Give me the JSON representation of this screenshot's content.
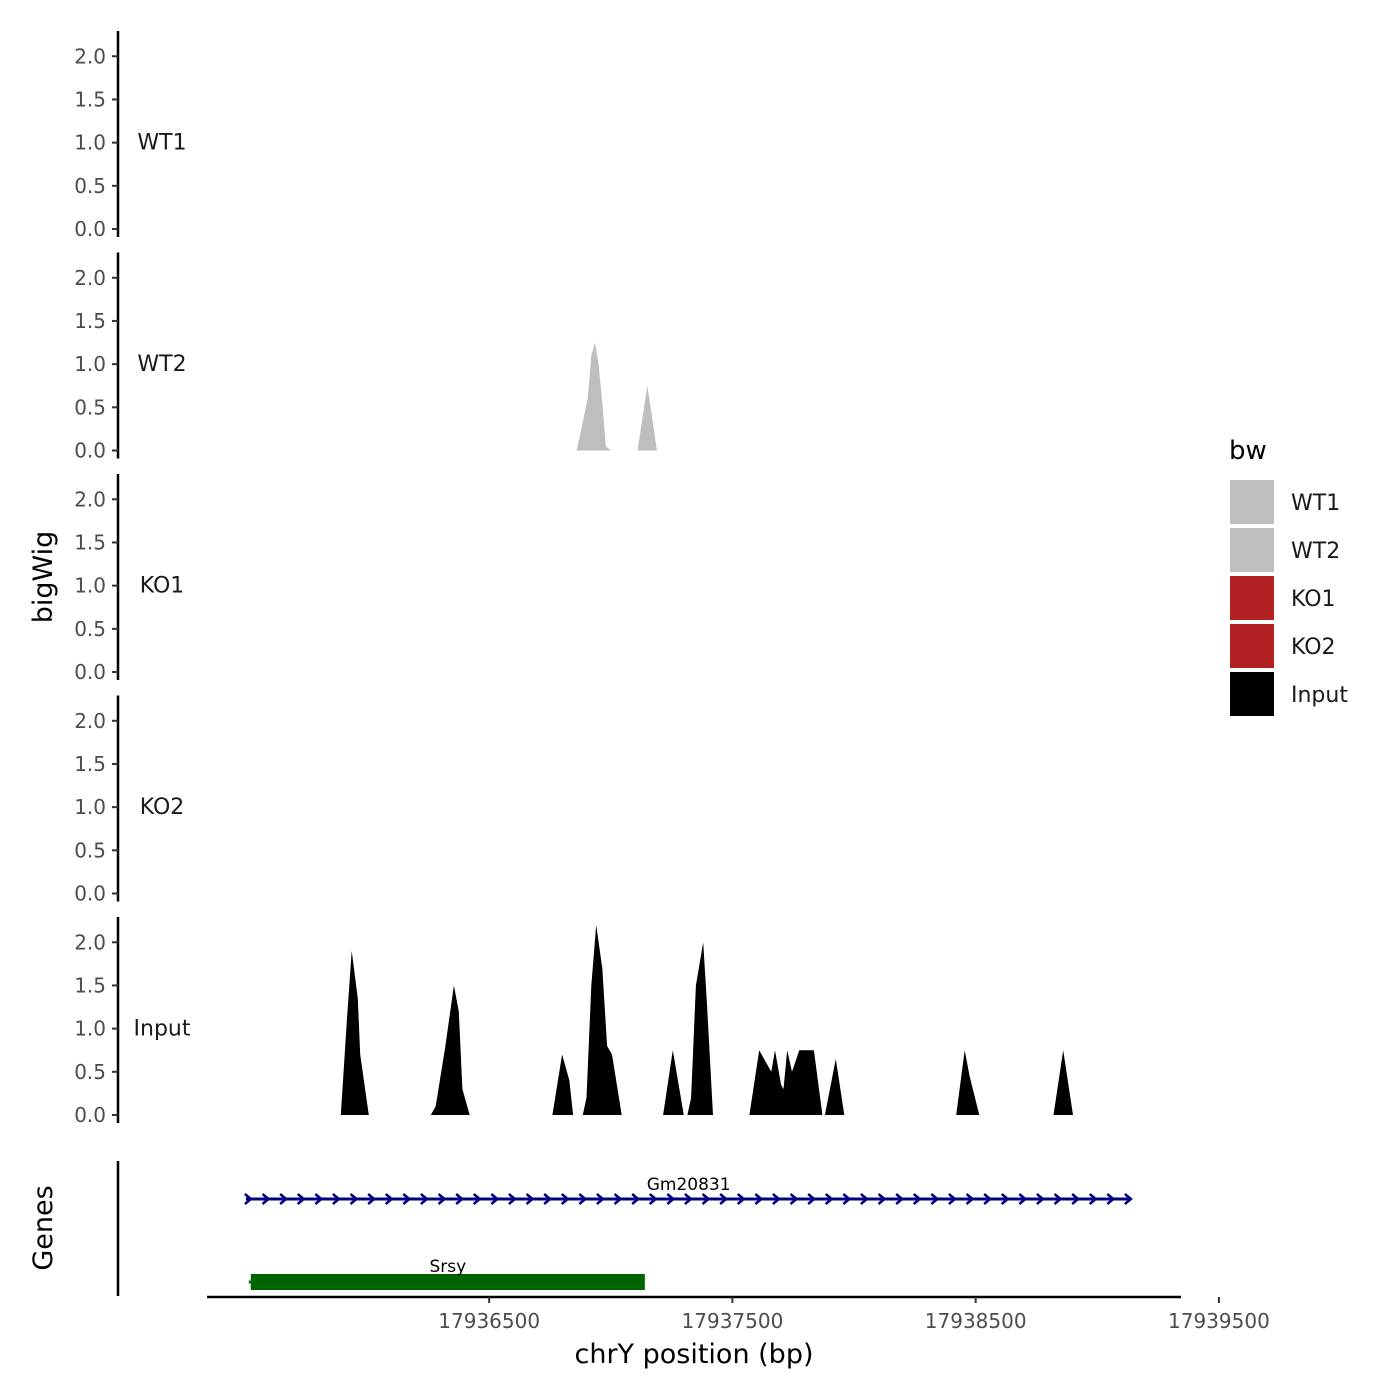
{
  "chart_data": {
    "type": "area",
    "chromosome": "chrY",
    "xlabel": "chrY position (bp)",
    "ylabel": "bigWig",
    "genes_axis_label": "Genes",
    "xlim": [
      17935340,
      17939340
    ],
    "xticks": [
      17936500,
      17937500,
      17938500,
      17939500
    ],
    "xtick_labels": [
      "17936500",
      "17937500",
      "17938500",
      "17939500"
    ],
    "ylim": [
      0,
      2.2
    ],
    "yticks": [
      0.0,
      0.5,
      1.0,
      1.5,
      2.0
    ],
    "ytick_labels": [
      "0.0",
      "0.5",
      "1.0",
      "1.5",
      "2.0"
    ],
    "tracks": [
      {
        "name": "WT1",
        "color": "#bebebe",
        "points": []
      },
      {
        "name": "WT2",
        "color": "#bebebe",
        "points": [
          [
            17936860,
            0
          ],
          [
            17936905,
            0.6
          ],
          [
            17936920,
            1.1
          ],
          [
            17936935,
            1.25
          ],
          [
            17936950,
            1.0
          ],
          [
            17936965,
            0.55
          ],
          [
            17936980,
            0.05
          ],
          [
            17937000,
            0
          ],
          [
            17937110,
            0
          ],
          [
            17937150,
            0.75
          ],
          [
            17937190,
            0
          ]
        ]
      },
      {
        "name": "KO1",
        "color": "#b22222",
        "points": []
      },
      {
        "name": "KO2",
        "color": "#b22222",
        "points": []
      },
      {
        "name": "Input",
        "color": "#000000",
        "points": [
          [
            17935890,
            0
          ],
          [
            17935915,
            1.1
          ],
          [
            17935935,
            1.9
          ],
          [
            17935960,
            1.35
          ],
          [
            17935970,
            0.7
          ],
          [
            17936005,
            0
          ],
          [
            17936260,
            0
          ],
          [
            17936280,
            0.1
          ],
          [
            17936320,
            0.8
          ],
          [
            17936355,
            1.5
          ],
          [
            17936375,
            1.2
          ],
          [
            17936390,
            0.3
          ],
          [
            17936420,
            0
          ],
          [
            17936760,
            0
          ],
          [
            17936800,
            0.7
          ],
          [
            17936830,
            0.4
          ],
          [
            17936845,
            0
          ],
          [
            17936885,
            0
          ],
          [
            17936900,
            0.2
          ],
          [
            17936920,
            1.5
          ],
          [
            17936940,
            2.2
          ],
          [
            17936965,
            1.7
          ],
          [
            17936985,
            0.8
          ],
          [
            17937005,
            0.7
          ],
          [
            17937045,
            0
          ],
          [
            17937215,
            0
          ],
          [
            17937255,
            0.75
          ],
          [
            17937300,
            0
          ],
          [
            17937315,
            0
          ],
          [
            17937330,
            0.2
          ],
          [
            17937350,
            1.5
          ],
          [
            17937380,
            2.0
          ],
          [
            17937395,
            1.3
          ],
          [
            17937420,
            0
          ],
          [
            17937570,
            0
          ],
          [
            17937610,
            0.75
          ],
          [
            17937660,
            0.5
          ],
          [
            17937675,
            0.75
          ],
          [
            17937700,
            0.35
          ],
          [
            17937710,
            0.3
          ],
          [
            17937725,
            0.75
          ],
          [
            17937745,
            0.5
          ],
          [
            17937775,
            0.75
          ],
          [
            17937835,
            0.75
          ],
          [
            17937870,
            0
          ],
          [
            17937880,
            0
          ],
          [
            17937925,
            0.65
          ],
          [
            17937960,
            0
          ],
          [
            17938420,
            0
          ],
          [
            17938455,
            0.75
          ],
          [
            17938475,
            0.45
          ],
          [
            17938515,
            0
          ],
          [
            17938820,
            0
          ],
          [
            17938860,
            0.75
          ],
          [
            17938900,
            0
          ],
          [
            17938920,
            0
          ]
        ]
      }
    ],
    "genes": [
      {
        "name": "Gm20831",
        "start": 17935500,
        "end": 17939140,
        "strand": "+",
        "color": "#000080",
        "row": 1
      },
      {
        "name": "Srsy",
        "start": 17935520,
        "end": 17937140,
        "color": "#006400",
        "row": 2
      }
    ],
    "legend": {
      "title": "bw",
      "position": "right",
      "entries": [
        {
          "label": "WT1",
          "color": "#bebebe"
        },
        {
          "label": "WT2",
          "color": "#bebebe"
        },
        {
          "label": "KO1",
          "color": "#b22222"
        },
        {
          "label": "KO2",
          "color": "#b22222"
        },
        {
          "label": "Input",
          "color": "#000000"
        }
      ]
    }
  }
}
